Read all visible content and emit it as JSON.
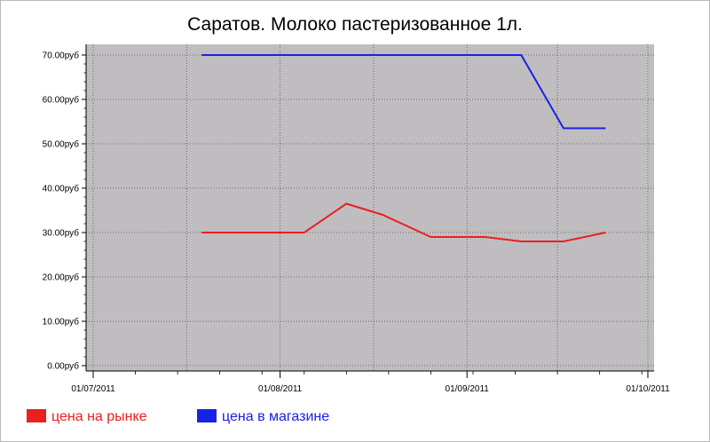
{
  "chart_data": {
    "type": "line",
    "title": "Саратов. Молоко пастеризованное 1л.",
    "xlabel": "",
    "ylabel": "",
    "x_range": [
      "2011-07-01",
      "2011-10-01"
    ],
    "x_ticks": [
      "2011-07-01",
      "2011-08-01",
      "2011-09-01",
      "2011-10-01"
    ],
    "x_tick_labels": [
      "01/07/2011",
      "01/08/2011",
      "01/09/2011",
      "01/10/2011"
    ],
    "ylim": [
      0,
      70
    ],
    "y_ticks": [
      0,
      10,
      20,
      30,
      40,
      50,
      60,
      70
    ],
    "y_tick_labels": [
      "0.00руб",
      "10.00руб",
      "20.00руб",
      "30.00руб",
      "40.00руб",
      "50.00руб",
      "60.00руб",
      "70.00руб"
    ],
    "grid": true,
    "background_color": "#c0bdc0",
    "legend_position": "bottom-left",
    "series": [
      {
        "name": "цена на рынке",
        "color": "#e8201f",
        "points": [
          {
            "x": "2011-07-19",
            "y": 30
          },
          {
            "x": "2011-08-05",
            "y": 30
          },
          {
            "x": "2011-08-12",
            "y": 36.5
          },
          {
            "x": "2011-08-18",
            "y": 34
          },
          {
            "x": "2011-08-26",
            "y": 29
          },
          {
            "x": "2011-09-04",
            "y": 29
          },
          {
            "x": "2011-09-10",
            "y": 28
          },
          {
            "x": "2011-09-17",
            "y": 28
          },
          {
            "x": "2011-09-24",
            "y": 30
          }
        ]
      },
      {
        "name": "цена в магазине",
        "color": "#1a21e6",
        "points": [
          {
            "x": "2011-07-19",
            "y": 70
          },
          {
            "x": "2011-09-10",
            "y": 70
          },
          {
            "x": "2011-09-17",
            "y": 53.5
          },
          {
            "x": "2011-09-24",
            "y": 53.5
          }
        ]
      }
    ]
  }
}
